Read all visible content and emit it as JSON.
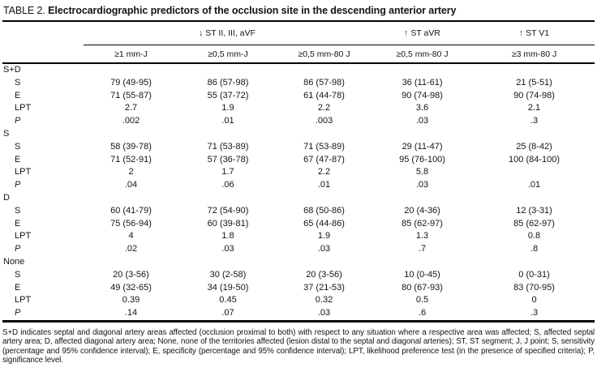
{
  "title": {
    "label": "TABLE 2.",
    "text": "Electrocardiographic predictors of the occlusion site in the descending anterior artery"
  },
  "table": {
    "group_headers": [
      {
        "label": "↓ ST II, III, aVF",
        "span": 3
      },
      {
        "label": "↑ ST aVR",
        "span": 1
      },
      {
        "label": "↑ ST V1",
        "span": 1
      }
    ],
    "column_headers": [
      "≥1 mm-J",
      "≥0,5 mm-J",
      "≥0,5 mm-80 J",
      "≥0,5 mm-80 J",
      "≥3 mm-80 J"
    ],
    "sections": [
      {
        "name": "S+D",
        "rows": [
          {
            "label": "S",
            "values": [
              "79 (49-95)",
              "86 (57-98)",
              "86 (57-98)",
              "36 (11-61)",
              "21 (5-51)"
            ]
          },
          {
            "label": "E",
            "values": [
              "71 (55-87)",
              "55 (37-72)",
              "61 (44-78)",
              "90 (74-98)",
              "90 (74-98)"
            ]
          },
          {
            "label": "LPT",
            "values": [
              "2.7",
              "1.9",
              "2.2",
              "3.6",
              "2.1"
            ]
          },
          {
            "label": "P",
            "values": [
              ".002",
              ".01",
              ".003",
              ".03",
              ".3"
            ]
          }
        ]
      },
      {
        "name": "S",
        "rows": [
          {
            "label": "S",
            "values": [
              "58 (39-78)",
              "71 (53-89)",
              "71 (53-89)",
              "29 (11-47)",
              "25 (8-42)"
            ]
          },
          {
            "label": "E",
            "values": [
              "71 (52-91)",
              "57 (36-78)",
              "67 (47-87)",
              "95 (76-100)",
              "100 (84-100)"
            ]
          },
          {
            "label": "LPT",
            "values": [
              "2",
              "1.7",
              "2.2",
              "5.8",
              ""
            ]
          },
          {
            "label": "P",
            "values": [
              ".04",
              ".06",
              ".01",
              ".03",
              ".01"
            ]
          }
        ]
      },
      {
        "name": "D",
        "rows": [
          {
            "label": "S",
            "values": [
              "60 (41-79)",
              "72 (54-90)",
              "68 (50-86)",
              "20 (4-36)",
              "12 (3-31)"
            ]
          },
          {
            "label": "E",
            "values": [
              "75 (56-94)",
              "60 (39-81)",
              "65 (44-86)",
              "85 (62-97)",
              "85 (62-97)"
            ]
          },
          {
            "label": "LPT",
            "values": [
              "4",
              "1.8",
              "1.9",
              "1.3",
              "0.8"
            ]
          },
          {
            "label": "P",
            "values": [
              ".02",
              ".03",
              ".03",
              ".7",
              ".8"
            ]
          }
        ]
      },
      {
        "name": "None",
        "rows": [
          {
            "label": "S",
            "values": [
              "20 (3-56)",
              "30 (2-58)",
              "20 (3-56)",
              "10 (0-45)",
              "0 (0-31)"
            ]
          },
          {
            "label": "E",
            "values": [
              "49 (32-65)",
              "34 (19-50)",
              "37 (21-53)",
              "80 (67-93)",
              "83 (70-95)"
            ]
          },
          {
            "label": "LPT",
            "values": [
              "0.39",
              "0.45",
              "0.32",
              "0.5",
              "0"
            ]
          },
          {
            "label": "P",
            "values": [
              ".14",
              ".07",
              ".03",
              ".6",
              ".3"
            ]
          }
        ]
      }
    ]
  },
  "footnote": "S+D indicates septal and diagonal artery areas affected (occlusion proximal to both) with respect to any situation where a respective area was affected; S, affected septal artery area; D, affected diagonal artery area; None, none of the territories affected (lesion distal to the septal and diagonal arteries); ST, ST segment; J, J point; S, sensitivity (percentage and 95% confidence interval); E, specificity (percentage and 95% confidence interval); LPT, likelihood preference test (in the presence of specified criteria); P, significance level."
}
